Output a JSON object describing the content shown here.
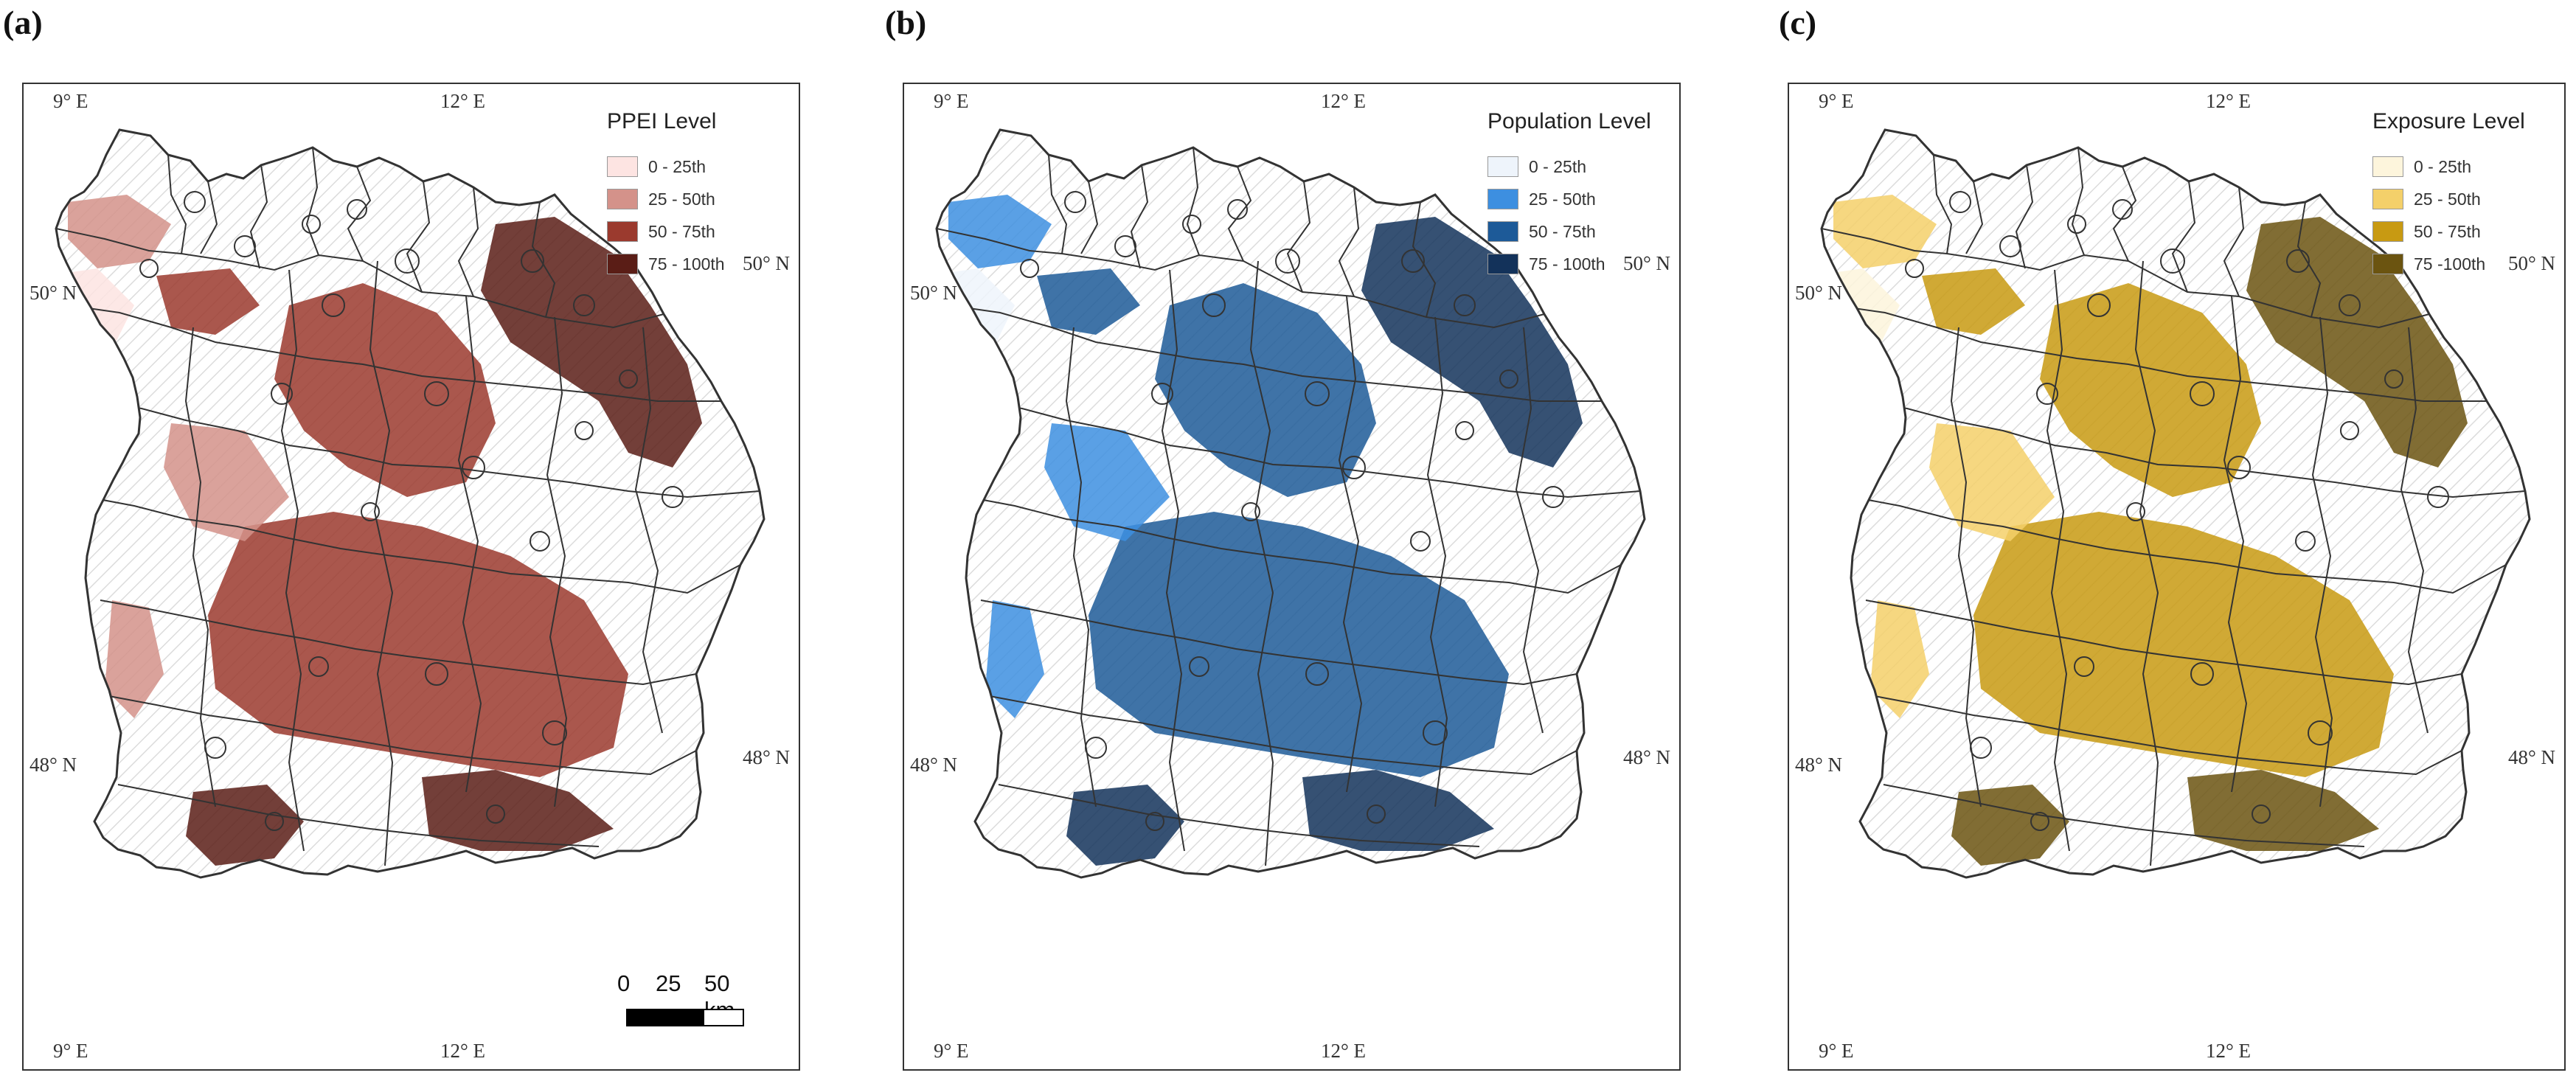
{
  "panels": [
    {
      "tag": "(a)",
      "legend_title": "PPEI Level",
      "legend": [
        {
          "label": "0 - 25th",
          "color": "#fde4e2"
        },
        {
          "label": "25 - 50th",
          "color": "#d4928a"
        },
        {
          "label": "50 - 75th",
          "color": "#9b3a2e"
        },
        {
          "label": "75 - 100th",
          "color": "#5a1d16"
        }
      ],
      "coords": {
        "top_left": "9° E",
        "top_right": "12° E",
        "bottom_left": "9° E",
        "bottom_right": "12° E",
        "left_upper": "50° N",
        "right_upper": "50° N",
        "left_lower": "48° N",
        "right_lower": "48° N"
      },
      "scale": {
        "labels": [
          "0",
          "25",
          "50 km"
        ]
      }
    },
    {
      "tag": "(b)",
      "legend_title": "Population Level",
      "legend": [
        {
          "label": "0 - 25th",
          "color": "#eef4fb"
        },
        {
          "label": "25 - 50th",
          "color": "#3d8fe0"
        },
        {
          "label": "50 - 75th",
          "color": "#1d5a98"
        },
        {
          "label": "75 - 100th",
          "color": "#13325a"
        }
      ],
      "coords": {
        "top_left": "9° E",
        "top_right": "12° E",
        "bottom_left": "9° E",
        "bottom_right": "12° E",
        "left_upper": "50° N",
        "right_upper": "50° N",
        "left_lower": "48° N",
        "right_lower": "48° N"
      }
    },
    {
      "tag": "(c)",
      "legend_title": "Exposure Level",
      "legend": [
        {
          "label": "0 - 25th",
          "color": "#fdf5dc"
        },
        {
          "label": "25 - 50th",
          "color": "#f4d06a"
        },
        {
          "label": "50 - 75th",
          "color": "#c89a12"
        },
        {
          "label": "75 -100th",
          "color": "#6b5410"
        }
      ],
      "coords": {
        "top_left": "9° E",
        "top_right": "12° E",
        "bottom_left": "9° E",
        "bottom_right": "12° E",
        "left_upper": "50° N",
        "right_upper": "50° N",
        "left_lower": "48° N",
        "right_lower": "48° N"
      }
    }
  ],
  "colors": {
    "boundary": "#333333",
    "hatch": "#dcdcdc",
    "frame": "#333333"
  }
}
